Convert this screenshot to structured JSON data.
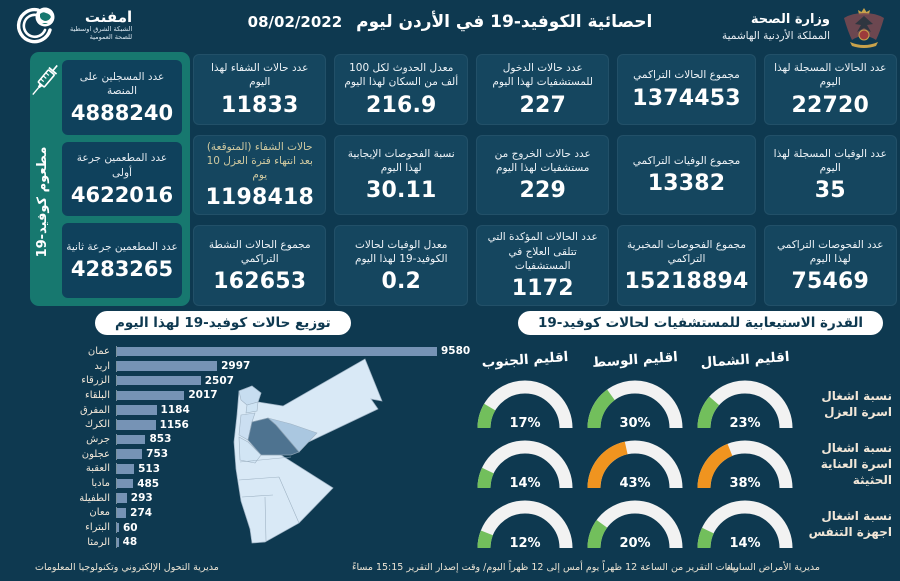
{
  "meta": {
    "title": "احصائية الكوفيد-19 في الأردن ليوم",
    "date": "08/02/2022"
  },
  "branding": {
    "emphnet_name": "امفنت",
    "emphnet_sub1": "الشبكة الشرق اوسطية",
    "emphnet_sub2": "للصحة العمومية",
    "ministry": "وزارة الصحة",
    "kingdom": "المملكة الأردنية الهاشمية"
  },
  "vaccination_panel": {
    "side_label": "مطعوم كوفيد-19",
    "cards": [
      {
        "label": "عدد المسجلين على المنصة",
        "value": "4888240"
      },
      {
        "label": "عدد المطعمين جرعة أولى",
        "value": "4622016"
      },
      {
        "label": "عدد المطعمين جرعة ثانية",
        "value": "4283265"
      }
    ]
  },
  "stat_cards": [
    {
      "label": "عدد الحالات المسجلة لهذا اليوم",
      "value": "22720"
    },
    {
      "label": "مجموع الحالات التراكمي",
      "value": "1374453"
    },
    {
      "label": "عدد حالات الدخول للمستشفيات لهذا اليوم",
      "value": "227"
    },
    {
      "label": "معدل الحدوث لكل 100 ألف من السكان لهذا اليوم",
      "value": "216.9"
    },
    {
      "label": "عدد حالات الشفاء لهذا اليوم",
      "value": "11833"
    },
    {
      "label": "عدد الوفيات المسجلة لهذا اليوم",
      "value": "35"
    },
    {
      "label": "مجموع الوفيات التراكمي",
      "value": "13382"
    },
    {
      "label": "عدد حالات الخروج من مستشفيات لهذا اليوم",
      "value": "229"
    },
    {
      "label": "نسبة الفحوصات الإيجابية لهذا اليوم",
      "value": "30.11"
    },
    {
      "label": "حالات الشفاء (المتوقعة) بعد انتهاء فترة العزل 10 يوم",
      "value": "1198418",
      "accent": true
    },
    {
      "label": "عدد الفحوصات التراكمي لهذا اليوم",
      "value": "75469"
    },
    {
      "label": "مجموع الفحوصات المخبرية التراكمي",
      "value": "15218894"
    },
    {
      "label": "عدد الحالات المؤكدة التي تتلقى العلاج في المستشفيات",
      "value": "1172"
    },
    {
      "label": "معدل الوفيات لحالات الكوفيد-19 لهذا اليوم",
      "value": "0.2"
    },
    {
      "label": "مجموع الحالات النشطة التراكمي",
      "value": "162653"
    }
  ],
  "chart_data": [
    {
      "type": "bar",
      "orientation": "horizontal",
      "title": "توزيع حالات كوفيد-19 لهذا اليوم",
      "categories": [
        "عمان",
        "اربد",
        "الزرقاء",
        "البلقاء",
        "المفرق",
        "الكرك",
        "جرش",
        "عجلون",
        "العقبة",
        "مادبا",
        "الطفيلة",
        "معان",
        "البتراء",
        "الرمثا"
      ],
      "values": [
        9580,
        2997,
        2507,
        2017,
        1184,
        1156,
        853,
        753,
        513,
        485,
        293,
        274,
        60,
        48
      ],
      "xlim": [
        0,
        9580
      ],
      "value_labels": true,
      "grid": false
    },
    {
      "type": "gauge",
      "title": "القدرة الاستيعابية للمستشفيات لحالات كوفيد-19",
      "columns": [
        "اقليم الجنوب",
        "اقليم الوسط",
        "اقليم الشمال"
      ],
      "rows": [
        {
          "label": "نسبة اشغال اسرة العزل",
          "values_pct": [
            17,
            30,
            23
          ],
          "colors": [
            "green",
            "green",
            "green"
          ]
        },
        {
          "label": "نسبة اشغال اسرة العناية الحثيثة",
          "values_pct": [
            14,
            43,
            38
          ],
          "colors": [
            "green",
            "orange",
            "orange"
          ]
        },
        {
          "label": "نسبة اشغال اجهزة التنفس",
          "values_pct": [
            12,
            20,
            14
          ],
          "colors": [
            "green",
            "green",
            "green"
          ]
        }
      ],
      "range_pct": [
        0,
        100
      ]
    }
  ],
  "footer": {
    "left": "مديرية التحول الإلكتروني وتكنولوجيا المعلومات",
    "center": "بيانات التقرير من الساعة 12 ظهراً يوم أمس إلى 12 ظهراً اليوم/ وقت إصدار التقرير 15:15 مساءً",
    "right": "مديرية الأمراض السارية"
  },
  "colors": {
    "background": "#0e3950",
    "card": "#15465f",
    "panel_green": "#17786f",
    "bar": "#7693b5",
    "gauge_green": "#72bf5c",
    "gauge_orange": "#f0941f",
    "gauge_track": "#f2f2f2",
    "warm_label": "#f2e7d8"
  }
}
